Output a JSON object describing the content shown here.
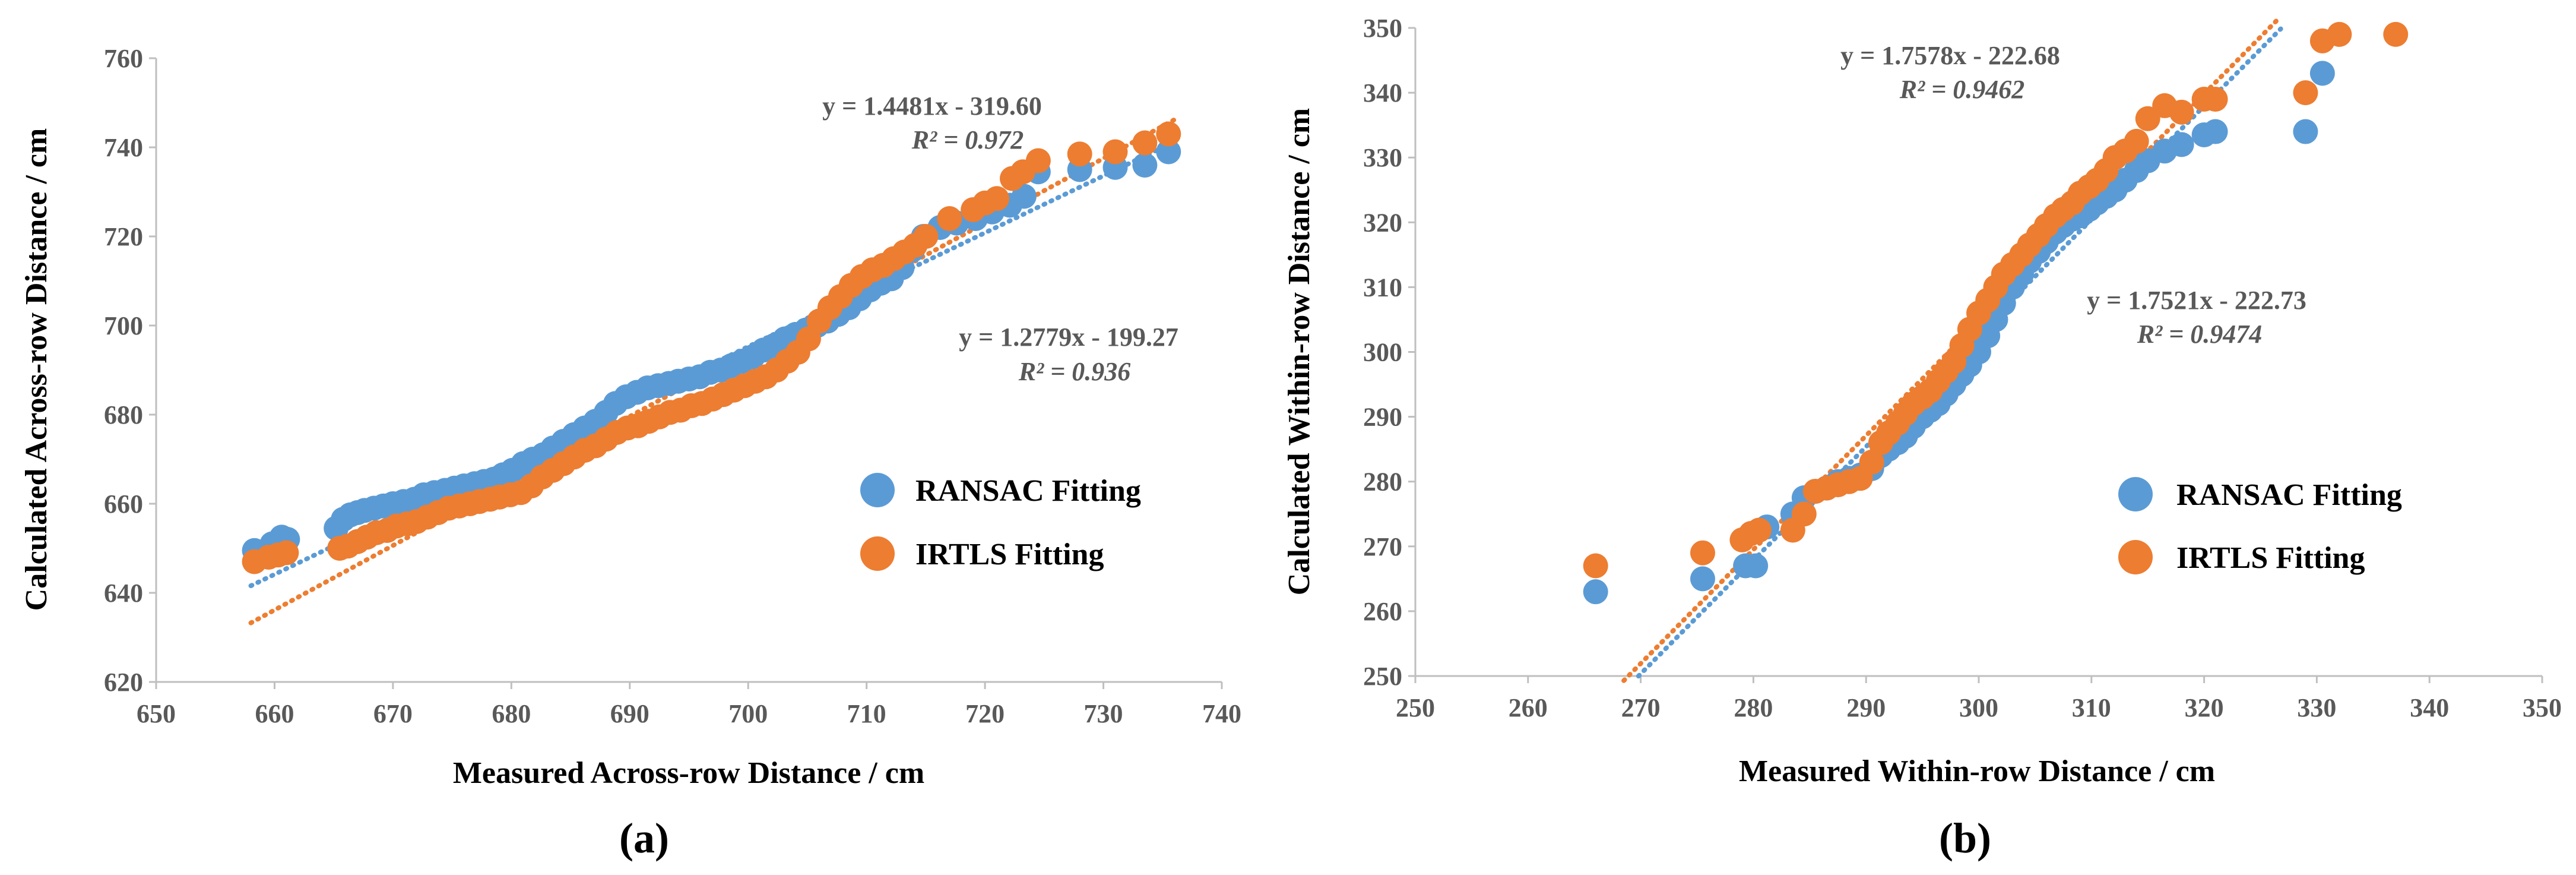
{
  "colors": {
    "ransac": "#5b9bd5",
    "irtls": "#ed7d31",
    "tick_text": "#595959",
    "axis": "#bfbfbf"
  },
  "chart_data": [
    {
      "type": "scatter",
      "panel_label": "(a)",
      "xlabel": "Measured Across-row Distance / cm",
      "ylabel": "Calculated Across-row Distance / cm",
      "xlim": [
        650,
        740
      ],
      "ylim": [
        620,
        760
      ],
      "xticks": [
        "650",
        "660",
        "670",
        "680",
        "690",
        "700",
        "710",
        "720",
        "730",
        "740"
      ],
      "yticks": [
        "620",
        "640",
        "660",
        "680",
        "700",
        "720",
        "740",
        "760"
      ],
      "legend": [
        "RANSAC Fitting",
        "IRTLS Fitting"
      ],
      "series": [
        {
          "name": "RANSAC Fitting",
          "color": "#5b9bd5",
          "trendline": {
            "slope": 1.2779,
            "intercept": -199.27,
            "x_range": [
              658,
              736
            ],
            "equation": "y = 1.2779x - 199.27",
            "r2_label": "R² = 0.936"
          },
          "x": [
            658.3,
            659.8,
            660.6,
            661.1,
            665.2,
            665.8,
            666.4,
            667.0,
            667.6,
            668.4,
            669.2,
            670.0,
            670.9,
            671.8,
            672.6,
            673.5,
            674.4,
            675.2,
            676.0,
            676.9,
            677.7,
            678.5,
            679.3,
            680.1,
            681.0,
            681.8,
            682.7,
            683.5,
            684.4,
            685.3,
            686.2,
            687.1,
            688.0,
            688.8,
            689.7,
            690.6,
            691.5,
            692.4,
            693.3,
            694.1,
            695.0,
            695.9,
            696.8,
            697.7,
            698.6,
            699.5,
            700.4,
            701.3,
            702.2,
            703.1,
            704.0,
            704.9,
            705.8,
            706.7,
            707.6,
            708.5,
            709.4,
            710.3,
            711.2,
            712.1,
            713.0,
            713.9,
            714.8,
            716.2,
            717.6,
            719.2,
            720.6,
            722.1,
            723.3,
            724.5,
            728.0,
            731.0,
            733.5,
            735.5
          ],
          "y": [
            649.5,
            651.0,
            652.5,
            652.0,
            654.5,
            656.5,
            657.5,
            658.0,
            658.5,
            659.0,
            659.5,
            660.0,
            660.5,
            661.0,
            662.0,
            662.5,
            663.0,
            663.5,
            664.0,
            664.5,
            665.0,
            665.5,
            666.5,
            667.5,
            669.0,
            670.0,
            671.0,
            672.5,
            674.0,
            675.5,
            677.0,
            678.5,
            680.5,
            682.5,
            684.0,
            685.0,
            686.0,
            686.5,
            687.0,
            687.5,
            688.0,
            688.5,
            689.5,
            690.0,
            691.0,
            692.0,
            693.0,
            694.5,
            695.5,
            697.0,
            698.0,
            699.0,
            700.0,
            701.0,
            702.5,
            704.0,
            706.0,
            708.0,
            709.5,
            710.5,
            713.0,
            717.0,
            720.0,
            722.0,
            723.0,
            724.0,
            725.5,
            727.0,
            729.0,
            734.5,
            735.0,
            735.5,
            736.0,
            739.0
          ]
        },
        {
          "name": "IRTLS Fitting",
          "color": "#ed7d31",
          "trendline": {
            "slope": 1.4481,
            "intercept": -319.6,
            "x_range": [
              658,
              736
            ],
            "equation": "y = 1.4481x - 319.60",
            "r2_label": "R² = 0.972"
          },
          "x": [
            658.3,
            659.5,
            660.3,
            661.0,
            665.5,
            666.2,
            667.0,
            667.8,
            668.6,
            669.5,
            670.3,
            671.2,
            672.0,
            672.9,
            673.8,
            674.7,
            675.6,
            676.5,
            677.3,
            678.2,
            679.0,
            679.9,
            680.8,
            681.7,
            682.6,
            683.5,
            684.4,
            685.3,
            686.2,
            687.1,
            688.0,
            688.9,
            689.8,
            690.7,
            691.6,
            692.5,
            693.4,
            694.3,
            695.2,
            696.1,
            697.0,
            697.9,
            698.8,
            699.7,
            700.6,
            701.5,
            702.4,
            703.3,
            704.2,
            705.1,
            706.0,
            706.9,
            707.8,
            708.7,
            709.6,
            710.5,
            711.4,
            712.3,
            713.2,
            714.1,
            715.0,
            717.0,
            719.0,
            720.0,
            721.0,
            722.3,
            723.2,
            724.5,
            728.0,
            731.0,
            733.5,
            735.5
          ],
          "y": [
            647.0,
            648.0,
            648.5,
            649.0,
            650.0,
            650.5,
            651.5,
            652.5,
            653.5,
            654.0,
            655.0,
            655.5,
            656.0,
            657.0,
            658.0,
            659.0,
            659.5,
            660.0,
            660.5,
            661.0,
            661.5,
            662.0,
            662.5,
            664.0,
            666.0,
            667.5,
            669.0,
            670.5,
            672.0,
            673.0,
            674.5,
            676.0,
            677.0,
            677.5,
            678.5,
            679.5,
            680.5,
            681.0,
            682.0,
            682.5,
            683.5,
            684.5,
            685.5,
            686.5,
            687.5,
            688.5,
            690.0,
            692.0,
            694.0,
            697.0,
            701.0,
            704.0,
            706.5,
            709.0,
            711.0,
            712.5,
            713.5,
            715.0,
            716.5,
            718.0,
            720.0,
            724.0,
            726.0,
            727.5,
            728.5,
            733.0,
            734.5,
            737.0,
            738.5,
            739.0,
            741.0,
            743.0
          ]
        }
      ]
    },
    {
      "type": "scatter",
      "panel_label": "(b)",
      "xlabel": "Measured Within-row Distance / cm",
      "ylabel": "Calculated Within-row Distance / cm",
      "xlim": [
        250,
        350
      ],
      "ylim": [
        250,
        350
      ],
      "xticks": [
        "250",
        "260",
        "270",
        "280",
        "290",
        "300",
        "310",
        "320",
        "330",
        "340",
        "350"
      ],
      "yticks": [
        "250",
        "260",
        "270",
        "280",
        "290",
        "300",
        "310",
        "320",
        "330",
        "340",
        "350"
      ],
      "legend": [
        "RANSAC Fitting",
        "IRTLS Fitting"
      ],
      "series": [
        {
          "name": "RANSAC Fitting",
          "color": "#5b9bd5",
          "trendline": {
            "slope": 1.7521,
            "intercept": -222.73,
            "x_range": [
              269.8,
              326.8
            ],
            "equation": "y = 1.7521x - 222.73",
            "r2_label": "R² = 0.9474"
          },
          "x": [
            266.0,
            275.5,
            279.3,
            280.2,
            281.2,
            283.5,
            284.5,
            285.5,
            286.5,
            287.5,
            288.5,
            289.5,
            290.5,
            291.3,
            292.0,
            292.8,
            293.5,
            294.2,
            295.0,
            295.7,
            296.4,
            297.1,
            297.8,
            298.5,
            299.2,
            300.0,
            300.8,
            301.5,
            302.2,
            303.0,
            303.8,
            304.5,
            305.3,
            306.0,
            306.8,
            307.5,
            308.3,
            309.0,
            309.8,
            310.5,
            311.3,
            312.1,
            313.0,
            314.0,
            315.0,
            316.5,
            318.0,
            320.0,
            321.0,
            329.0,
            330.5
          ],
          "y": [
            263.0,
            265.0,
            267.0,
            267.0,
            273.0,
            275.0,
            277.5,
            278.5,
            279.0,
            280.0,
            280.5,
            281.0,
            282.0,
            284.0,
            285.0,
            286.0,
            287.0,
            288.5,
            290.0,
            291.0,
            292.0,
            293.5,
            295.0,
            296.5,
            298.0,
            300.0,
            302.5,
            305.0,
            307.5,
            310.0,
            312.0,
            314.0,
            315.5,
            317.0,
            318.5,
            319.5,
            320.5,
            321.0,
            322.0,
            323.0,
            324.0,
            325.0,
            326.5,
            328.0,
            329.5,
            331.0,
            332.0,
            333.5,
            334.0,
            334.0,
            343.0
          ]
        },
        {
          "name": "IRTLS Fitting",
          "color": "#ed7d31",
          "trendline": {
            "slope": 1.7578,
            "intercept": -222.68,
            "x_range": [
              268.5,
              326.5
            ],
            "equation": "y = 1.7578x - 222.68",
            "r2_label": "R² = 0.9462"
          },
          "x": [
            266.0,
            275.5,
            279.0,
            279.8,
            280.5,
            283.5,
            284.5,
            285.5,
            286.5,
            287.5,
            288.5,
            289.5,
            290.5,
            291.3,
            292.0,
            292.8,
            293.5,
            294.2,
            295.0,
            295.7,
            296.4,
            297.1,
            297.8,
            298.5,
            299.2,
            300.0,
            300.8,
            301.5,
            302.2,
            303.0,
            303.8,
            304.5,
            305.3,
            306.0,
            306.8,
            307.5,
            308.3,
            309.0,
            309.8,
            310.5,
            311.3,
            312.1,
            313.0,
            314.0,
            315.0,
            316.5,
            318.0,
            320.0,
            321.0,
            329.0,
            330.5,
            332.0,
            337.0
          ],
          "y": [
            267.0,
            269.0,
            271.0,
            272.0,
            272.5,
            272.5,
            275.0,
            278.5,
            279.0,
            279.5,
            280.0,
            280.5,
            283.0,
            286.0,
            287.5,
            289.0,
            290.5,
            292.0,
            293.0,
            294.0,
            295.5,
            297.0,
            298.5,
            301.0,
            303.5,
            306.0,
            308.0,
            310.0,
            312.0,
            313.5,
            315.0,
            316.5,
            318.0,
            319.5,
            321.0,
            322.0,
            323.0,
            324.5,
            325.5,
            326.5,
            328.0,
            330.0,
            331.0,
            332.5,
            336.0,
            338.0,
            337.0,
            339.0,
            339.0,
            340.0,
            348.0,
            349.0,
            349.0
          ]
        }
      ]
    }
  ]
}
